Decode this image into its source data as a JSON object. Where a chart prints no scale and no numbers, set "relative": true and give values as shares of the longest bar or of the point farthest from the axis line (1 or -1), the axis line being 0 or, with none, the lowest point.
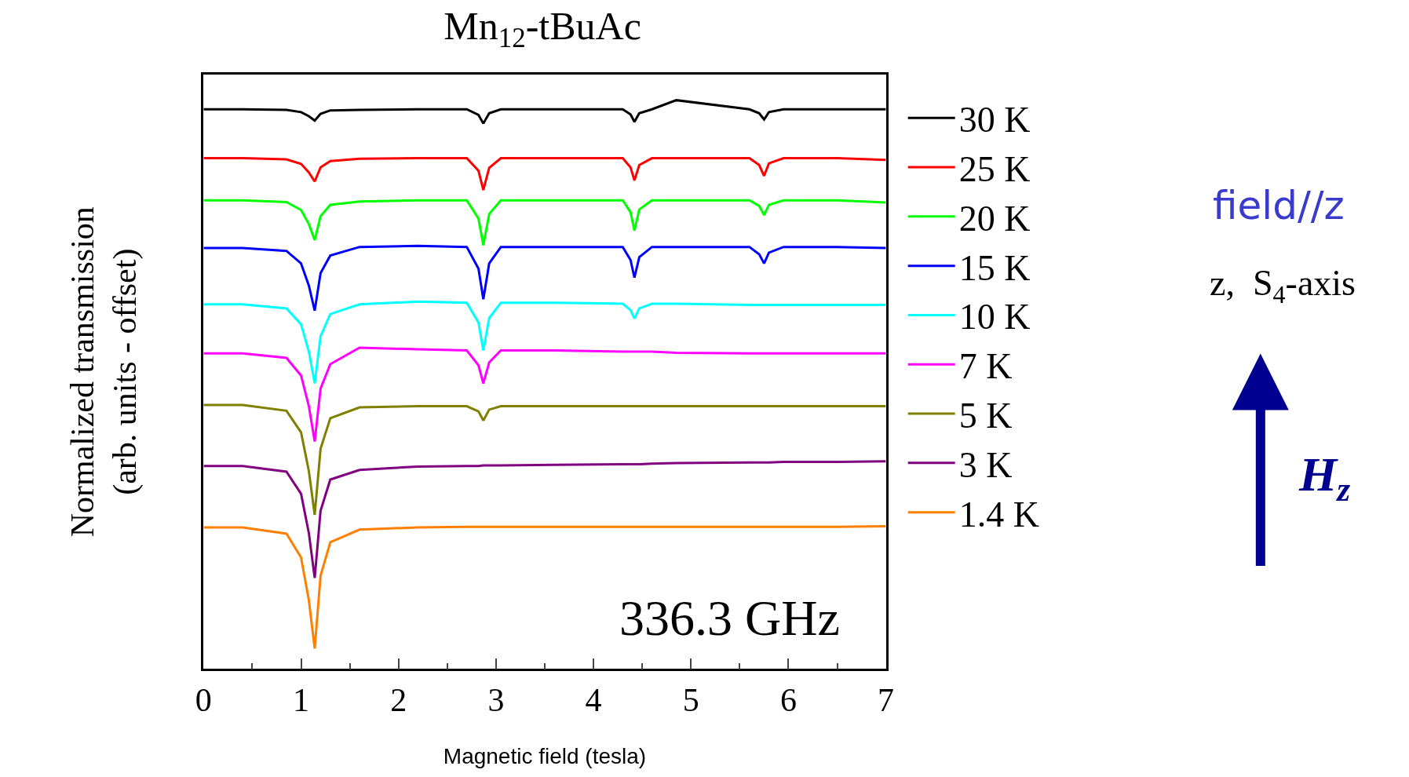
{
  "chart_data": {
    "type": "line",
    "relative": true,
    "title": "Mn$_{12}$-tBuAc",
    "xlabel": "Magnetic field (tesla)",
    "ylabel": "Normalized transmission\n(arb. units - offset)",
    "xlim": [
      0,
      7
    ],
    "xticks": [
      0,
      1,
      2,
      3,
      4,
      5,
      6,
      7
    ],
    "legend": "right",
    "line_style": "solid",
    "marker": "none",
    "tick_labels": "x",
    "x": [
      0,
      0.4,
      0.85,
      1.0,
      1.08,
      1.14,
      1.2,
      1.3,
      1.6,
      2.2,
      2.7,
      2.82,
      2.87,
      2.93,
      3.05,
      3.6,
      4.3,
      4.38,
      4.42,
      4.47,
      4.6,
      4.85,
      5.6,
      5.7,
      5.75,
      5.8,
      5.95,
      6.5,
      7
    ],
    "series": [
      {
        "name": "30 K",
        "color": "#000000",
        "values": [
          0.984,
          0.984,
          0.983,
          0.979,
          0.972,
          0.964,
          0.976,
          0.982,
          0.983,
          0.984,
          0.984,
          0.974,
          0.959,
          0.977,
          0.984,
          0.984,
          0.984,
          0.975,
          0.962,
          0.977,
          0.984,
          1.0,
          0.984,
          0.977,
          0.966,
          0.979,
          0.984,
          0.984,
          0.984
        ]
      },
      {
        "name": "25 K",
        "color": "#ff0000",
        "values": [
          0.898,
          0.898,
          0.896,
          0.888,
          0.873,
          0.857,
          0.882,
          0.893,
          0.897,
          0.898,
          0.898,
          0.876,
          0.842,
          0.881,
          0.898,
          0.898,
          0.898,
          0.882,
          0.859,
          0.886,
          0.898,
          0.898,
          0.898,
          0.886,
          0.867,
          0.889,
          0.898,
          0.898,
          0.895
        ]
      },
      {
        "name": "20 K",
        "color": "#00ff00",
        "values": [
          0.824,
          0.824,
          0.821,
          0.807,
          0.782,
          0.754,
          0.796,
          0.816,
          0.822,
          0.824,
          0.824,
          0.792,
          0.745,
          0.8,
          0.824,
          0.824,
          0.824,
          0.803,
          0.771,
          0.808,
          0.824,
          0.824,
          0.824,
          0.814,
          0.798,
          0.816,
          0.824,
          0.824,
          0.82
        ]
      },
      {
        "name": "15 K",
        "color": "#0000ff",
        "values": [
          0.74,
          0.74,
          0.735,
          0.713,
          0.674,
          0.63,
          0.696,
          0.727,
          0.742,
          0.744,
          0.742,
          0.704,
          0.65,
          0.713,
          0.742,
          0.742,
          0.742,
          0.719,
          0.688,
          0.724,
          0.742,
          0.742,
          0.742,
          0.729,
          0.713,
          0.732,
          0.742,
          0.742,
          0.74
        ]
      },
      {
        "name": "10 K",
        "color": "#00ffff",
        "values": [
          0.641,
          0.641,
          0.634,
          0.606,
          0.558,
          0.502,
          0.585,
          0.624,
          0.641,
          0.646,
          0.644,
          0.609,
          0.56,
          0.617,
          0.644,
          0.644,
          0.642,
          0.631,
          0.616,
          0.634,
          0.642,
          0.642,
          0.64,
          0.64,
          0.64,
          0.64,
          0.64,
          0.64,
          0.64
        ]
      },
      {
        "name": "7 K",
        "color": "#ff00ff",
        "values": [
          0.555,
          0.555,
          0.547,
          0.516,
          0.462,
          0.4,
          0.493,
          0.536,
          0.565,
          0.562,
          0.56,
          0.534,
          0.502,
          0.539,
          0.56,
          0.56,
          0.558,
          0.558,
          0.558,
          0.558,
          0.558,
          0.556,
          0.555,
          0.555,
          0.555,
          0.555,
          0.555,
          0.555,
          0.555
        ]
      },
      {
        "name": "5 K",
        "color": "#808000",
        "values": [
          0.464,
          0.464,
          0.454,
          0.416,
          0.348,
          0.271,
          0.387,
          0.441,
          0.46,
          0.462,
          0.462,
          0.453,
          0.437,
          0.456,
          0.462,
          0.462,
          0.462,
          0.462,
          0.462,
          0.462,
          0.462,
          0.462,
          0.462,
          0.462,
          0.462,
          0.462,
          0.462,
          0.462,
          0.462
        ]
      },
      {
        "name": "3 K",
        "color": "#800080",
        "values": [
          0.357,
          0.357,
          0.347,
          0.308,
          0.239,
          0.16,
          0.278,
          0.333,
          0.35,
          0.356,
          0.357,
          0.357,
          0.358,
          0.358,
          0.358,
          0.359,
          0.36,
          0.36,
          0.36,
          0.36,
          0.361,
          0.362,
          0.363,
          0.363,
          0.363,
          0.363,
          0.364,
          0.364,
          0.365
        ]
      },
      {
        "name": "1.4 K",
        "color": "#ff8000",
        "values": [
          0.249,
          0.249,
          0.238,
          0.196,
          0.121,
          0.036,
          0.164,
          0.223,
          0.245,
          0.249,
          0.25,
          0.25,
          0.25,
          0.25,
          0.25,
          0.25,
          0.25,
          0.25,
          0.25,
          0.25,
          0.25,
          0.25,
          0.25,
          0.25,
          0.25,
          0.25,
          0.25,
          0.25,
          0.251
        ]
      }
    ],
    "annotations": [
      "336.3 GHz",
      "field//z",
      "z,  S$_{4}$-axis",
      "H$_{z}$"
    ]
  }
}
